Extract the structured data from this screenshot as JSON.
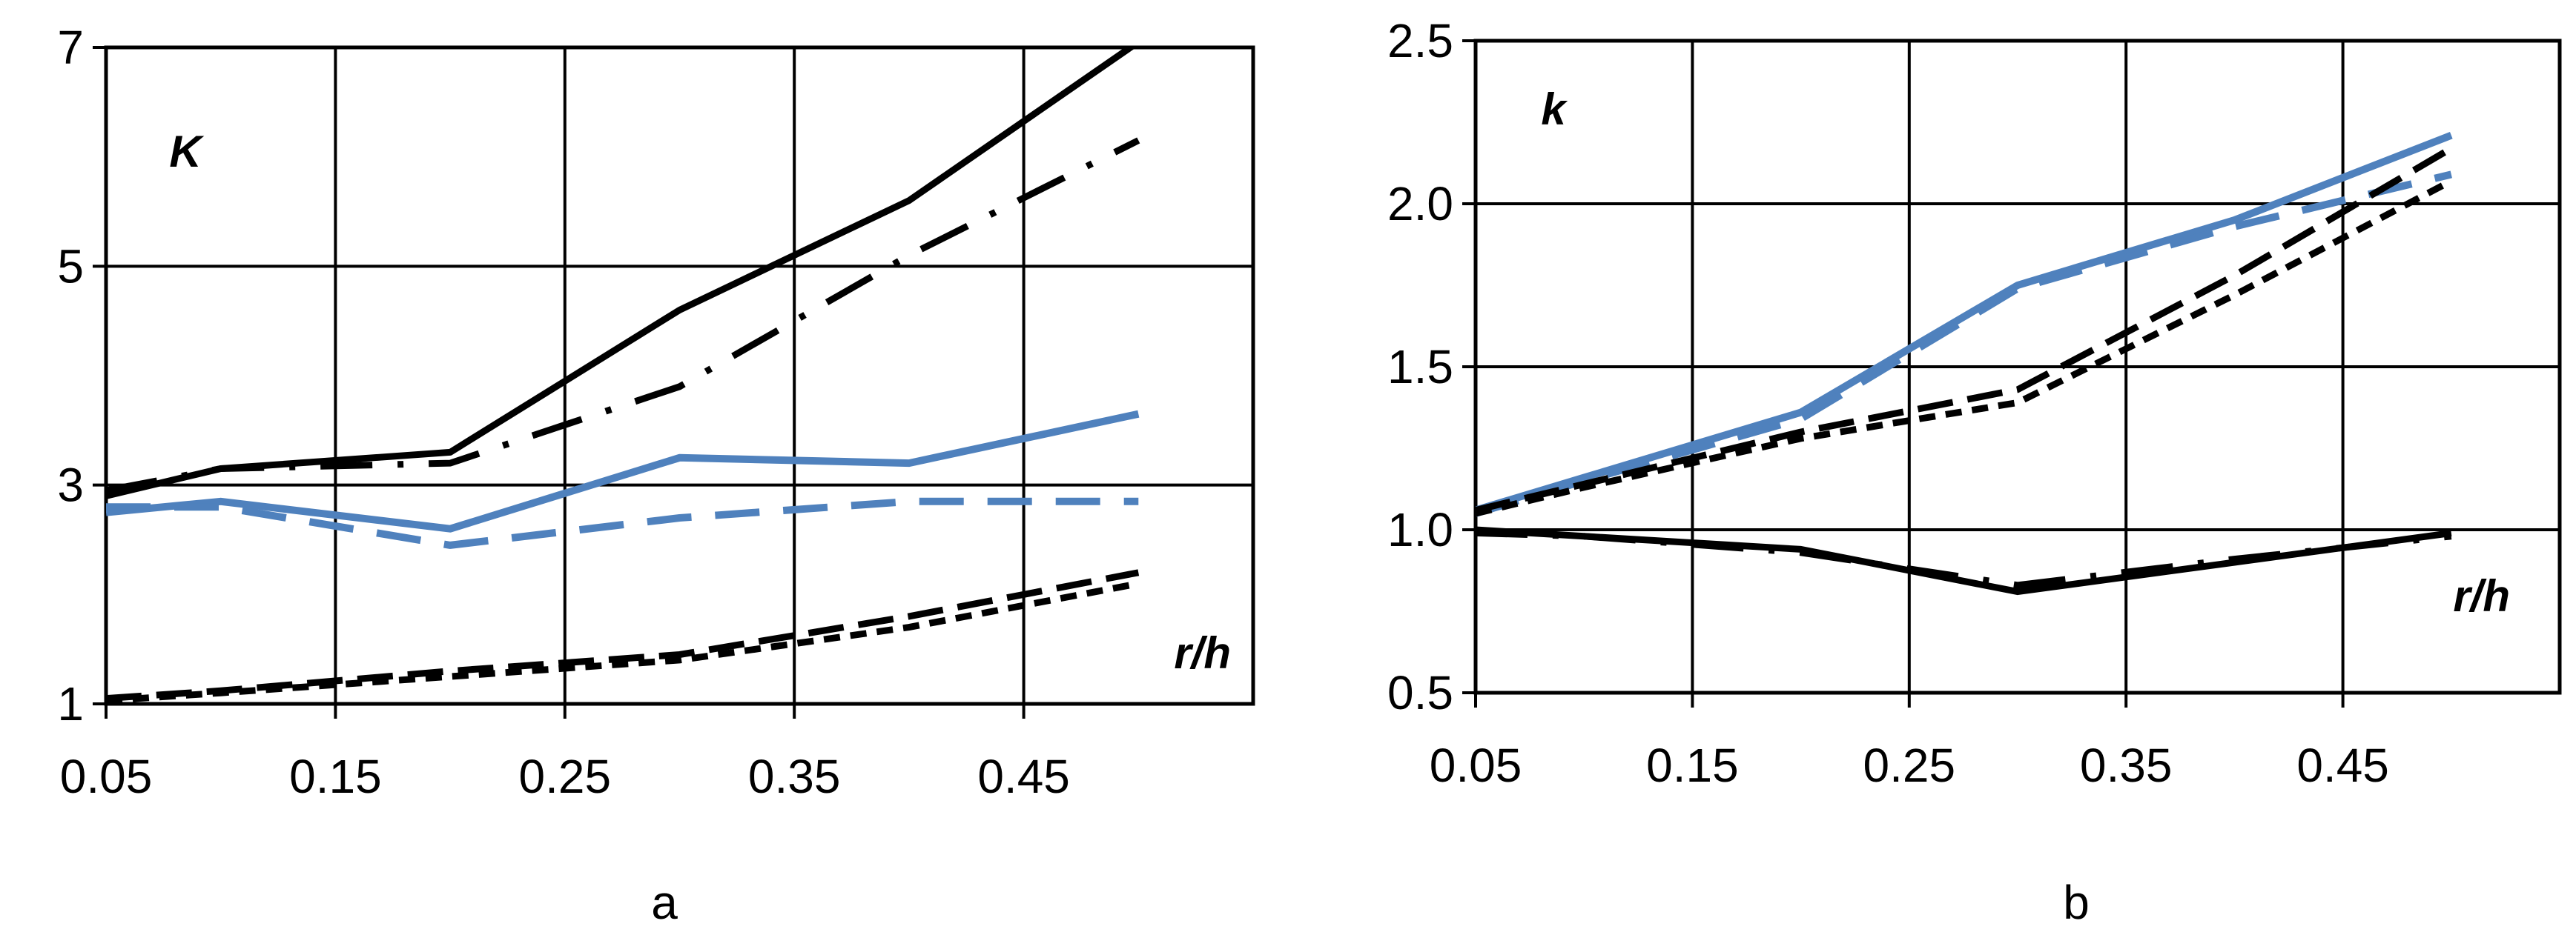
{
  "colors": {
    "black": "#000000",
    "blue": "#4f81bd",
    "grid": "#000000"
  },
  "chart_data": [
    {
      "type": "line",
      "panel": "a",
      "caption": "a",
      "ylabel": "K",
      "xlabel": "r/h",
      "xlim": [
        0.05,
        0.55
      ],
      "ylim": [
        1,
        7
      ],
      "x_ticks": [
        "0.05",
        "0.15",
        "0.25",
        "0.35",
        "0.45"
      ],
      "y_ticks": [
        "1",
        "3",
        "5",
        "7"
      ],
      "series": [
        {
          "name": "black-solid",
          "color": "#000000",
          "style": "solid",
          "x": [
            0.05,
            0.1,
            0.2,
            0.3,
            0.4,
            0.5
          ],
          "y": [
            2.9,
            3.15,
            3.3,
            4.6,
            5.6,
            7.05
          ]
        },
        {
          "name": "black-dash-dot",
          "color": "#000000",
          "style": "dashdot",
          "x": [
            0.05,
            0.1,
            0.2,
            0.3,
            0.4,
            0.5
          ],
          "y": [
            2.95,
            3.15,
            3.2,
            3.9,
            5.1,
            6.15
          ]
        },
        {
          "name": "blue-solid",
          "color": "#4f81bd",
          "style": "solid",
          "x": [
            0.05,
            0.1,
            0.2,
            0.3,
            0.4,
            0.5
          ],
          "y": [
            2.75,
            2.85,
            2.6,
            3.25,
            3.2,
            3.65
          ]
        },
        {
          "name": "blue-dashed",
          "color": "#4f81bd",
          "style": "dashed",
          "x": [
            0.05,
            0.1,
            0.2,
            0.3,
            0.4,
            0.5
          ],
          "y": [
            2.8,
            2.8,
            2.45,
            2.7,
            2.85,
            2.85
          ]
        },
        {
          "name": "black-long-dash",
          "color": "#000000",
          "style": "longdash",
          "x": [
            0.05,
            0.1,
            0.2,
            0.3,
            0.4,
            0.5
          ],
          "y": [
            1.05,
            1.12,
            1.3,
            1.45,
            1.8,
            2.2
          ]
        },
        {
          "name": "black-short-dash",
          "color": "#000000",
          "style": "shortdash",
          "x": [
            0.05,
            0.1,
            0.2,
            0.3,
            0.4,
            0.5
          ],
          "y": [
            1.03,
            1.1,
            1.25,
            1.4,
            1.7,
            2.1
          ]
        }
      ]
    },
    {
      "type": "line",
      "panel": "b",
      "caption": "b",
      "ylabel": "k",
      "xlabel": "r/h",
      "xlim": [
        0.05,
        0.55
      ],
      "ylim": [
        0.5,
        2.5
      ],
      "x_ticks": [
        "0.05",
        "0.15",
        "0.25",
        "0.35",
        "0.45"
      ],
      "y_ticks": [
        "0.5",
        "1.0",
        "1.5",
        "2.0",
        "2.5"
      ],
      "series": [
        {
          "name": "blue-solid",
          "color": "#4f81bd",
          "style": "solid",
          "x": [
            0.05,
            0.1,
            0.2,
            0.3,
            0.4,
            0.5
          ],
          "y": [
            1.06,
            1.16,
            1.36,
            1.75,
            1.95,
            2.21
          ]
        },
        {
          "name": "blue-dashed",
          "color": "#4f81bd",
          "style": "dashed",
          "x": [
            0.05,
            0.1,
            0.2,
            0.3,
            0.4,
            0.5
          ],
          "y": [
            1.05,
            1.15,
            1.34,
            1.74,
            1.93,
            2.09
          ]
        },
        {
          "name": "black-long-dash",
          "color": "#000000",
          "style": "longdash",
          "x": [
            0.05,
            0.1,
            0.2,
            0.3,
            0.4,
            0.5
          ],
          "y": [
            1.06,
            1.14,
            1.3,
            1.43,
            1.78,
            2.17
          ]
        },
        {
          "name": "black-short-dash",
          "color": "#000000",
          "style": "shortdash",
          "x": [
            0.05,
            0.1,
            0.2,
            0.3,
            0.4,
            0.5
          ],
          "y": [
            1.05,
            1.13,
            1.28,
            1.39,
            1.72,
            2.07
          ]
        },
        {
          "name": "black-solid",
          "color": "#000000",
          "style": "solid",
          "x": [
            0.05,
            0.1,
            0.2,
            0.3,
            0.4,
            0.5
          ],
          "y": [
            1.0,
            0.98,
            0.94,
            0.81,
            0.9,
            0.99
          ]
        },
        {
          "name": "black-dash-dot",
          "color": "#000000",
          "style": "dashdot",
          "x": [
            0.05,
            0.1,
            0.2,
            0.3,
            0.4,
            0.5
          ],
          "y": [
            0.99,
            0.98,
            0.93,
            0.83,
            0.91,
            0.98
          ]
        }
      ]
    }
  ]
}
